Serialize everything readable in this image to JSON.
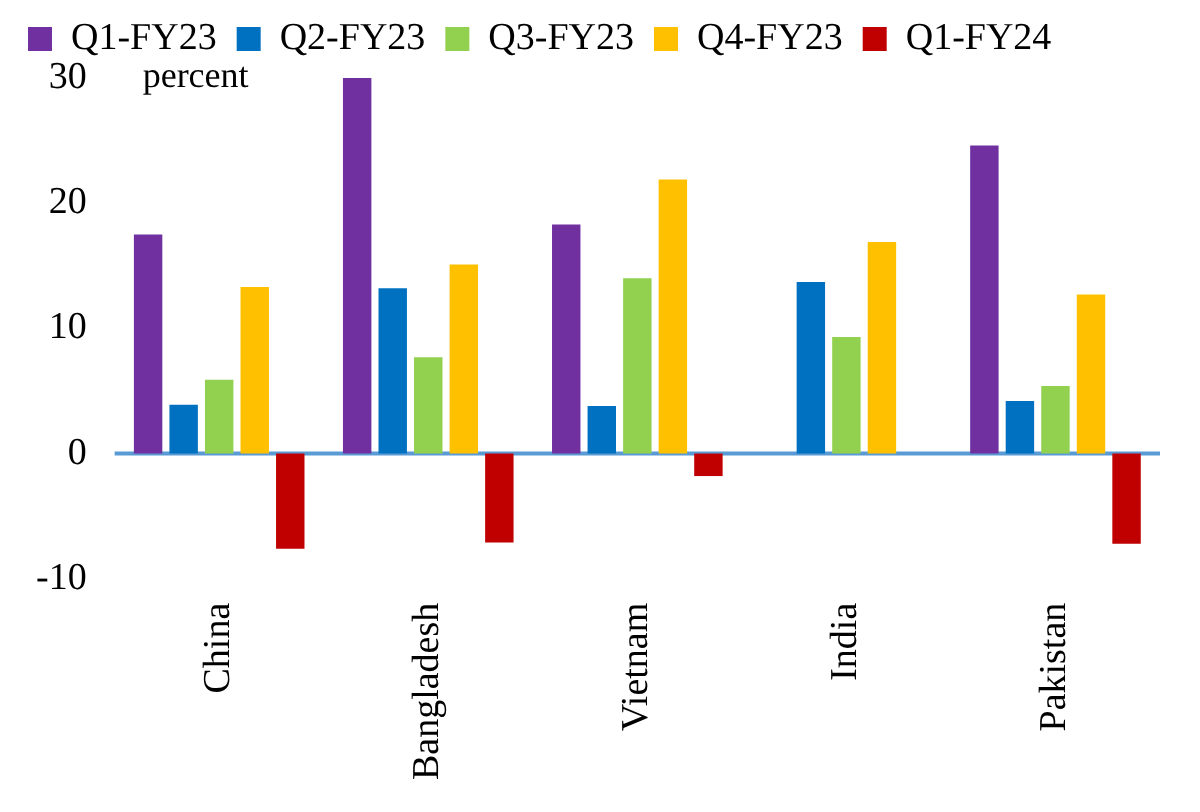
{
  "chart_data": {
    "type": "bar",
    "ylabel": "percent",
    "categories": [
      "China",
      "Bangladesh",
      "Vietnam",
      "India",
      "Pakistan"
    ],
    "series": [
      {
        "name": "Q1-FY23",
        "color": "#7030a0",
        "values": [
          17.5,
          30.0,
          18.3,
          null,
          24.6
        ]
      },
      {
        "name": "Q2-FY23",
        "color": "#0070c0",
        "values": [
          3.9,
          13.2,
          3.8,
          13.7,
          4.2
        ]
      },
      {
        "name": "Q3-FY23",
        "color": "#92d050",
        "values": [
          5.9,
          7.7,
          14.0,
          9.3,
          5.4
        ]
      },
      {
        "name": "Q4-FY23",
        "color": "#ffc000",
        "values": [
          13.3,
          15.1,
          21.9,
          16.9,
          12.7
        ]
      },
      {
        "name": "Q1-FY24",
        "color": "#c00000",
        "values": [
          -7.6,
          -7.1,
          -1.8,
          null,
          -7.2
        ]
      }
    ],
    "ref_lines": [
      {
        "axis": "y",
        "value": 0,
        "color": "#5b9bd5"
      }
    ],
    "ylim": [
      -10,
      30
    ],
    "yticks": [
      -10,
      0,
      10,
      20,
      30
    ],
    "grid": false,
    "legend": "top"
  }
}
